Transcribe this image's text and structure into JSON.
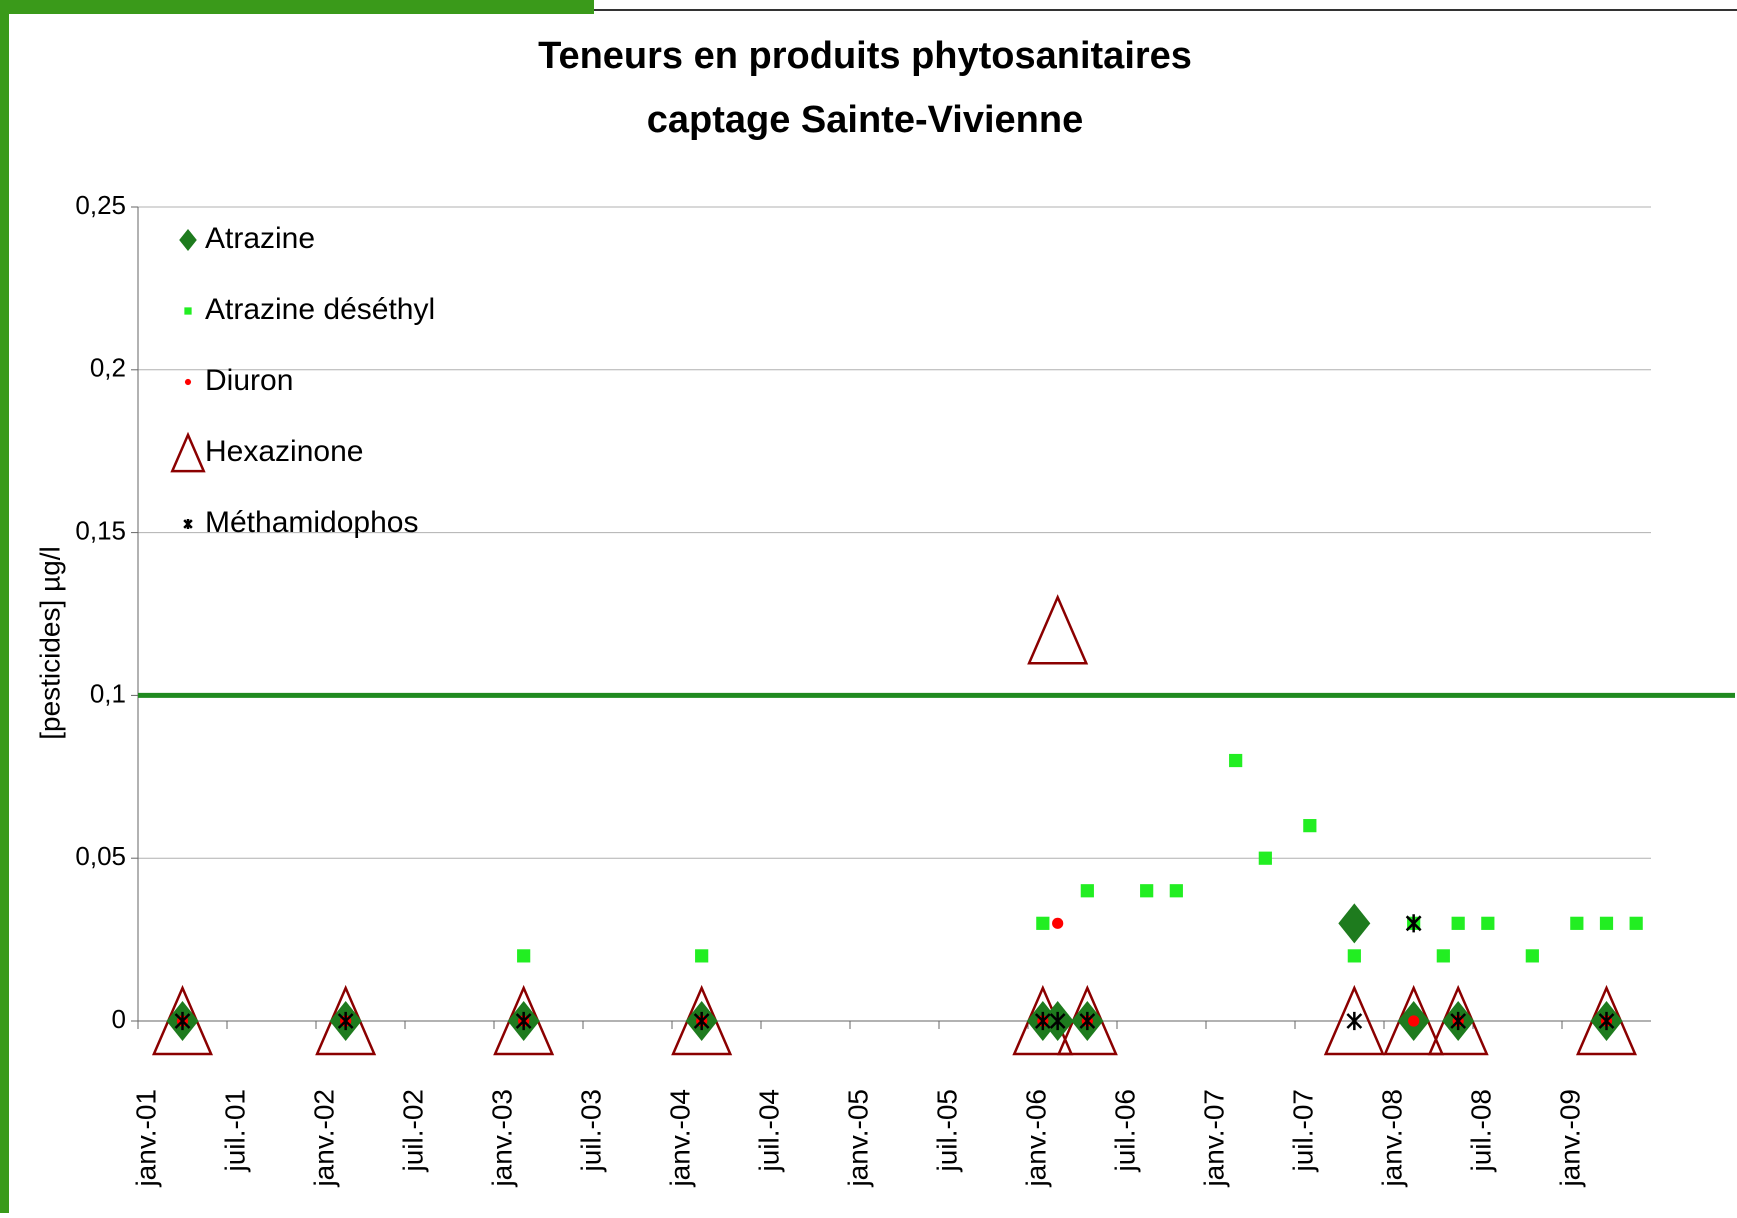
{
  "chart_data": {
    "type": "scatter",
    "title": "Teneurs en produits phytosanitaires",
    "subtitle": "captage Sainte-Vivienne",
    "ylabel": "[pesticides] µg/l",
    "xlim": [
      "2001-01",
      "2009-07"
    ],
    "xticks": [
      {
        "value": "2001-01",
        "label": "janv.-01"
      },
      {
        "value": "2001-07",
        "label": "juil.-01"
      },
      {
        "value": "2002-01",
        "label": "janv.-02"
      },
      {
        "value": "2002-07",
        "label": "juil.-02"
      },
      {
        "value": "2003-01",
        "label": "janv.-03"
      },
      {
        "value": "2003-07",
        "label": "juil.-03"
      },
      {
        "value": "2004-01",
        "label": "janv.-04"
      },
      {
        "value": "2004-07",
        "label": "juil.-04"
      },
      {
        "value": "2005-01",
        "label": "janv.-05"
      },
      {
        "value": "2005-07",
        "label": "juil.-05"
      },
      {
        "value": "2006-01",
        "label": "janv.-06"
      },
      {
        "value": "2006-07",
        "label": "juil.-06"
      },
      {
        "value": "2007-01",
        "label": "janv.-07"
      },
      {
        "value": "2007-07",
        "label": "juil.-07"
      },
      {
        "value": "2008-01",
        "label": "janv.-08"
      },
      {
        "value": "2008-07",
        "label": "juil.-08"
      },
      {
        "value": "2009-01",
        "label": "janv.-09"
      }
    ],
    "ylim": [
      0,
      0.25
    ],
    "yticks": [
      0,
      {
        "value": 0.05,
        "label": "0,05"
      },
      {
        "value": 0.1,
        "label": "0,1"
      },
      {
        "value": 0.15,
        "label": "0,15"
      },
      {
        "value": 0.2,
        "label": "0,2"
      },
      {
        "value": 0.25,
        "label": "0,25"
      }
    ],
    "grid": true,
    "legend": "top-left",
    "threshold": {
      "value": 0.1,
      "color": "#1f8a1f"
    },
    "series": [
      {
        "name": "Atrazine",
        "color": "#1e7b1e",
        "marker": "diamond",
        "x": [
          "2001-04",
          "2002-03",
          "2003-03",
          "2004-03",
          "2006-02",
          "2006-03",
          "2006-05",
          "2007-11",
          "2008-03",
          "2008-06",
          "2009-04"
        ],
        "values": [
          0,
          0,
          0,
          0,
          0,
          0,
          0,
          0.03,
          0,
          0,
          0
        ]
      },
      {
        "name": "Atrazine déséthyl",
        "color": "#22ee22",
        "marker": "square",
        "x": [
          "2003-03",
          "2004-03",
          "2006-02",
          "2006-05",
          "2006-09",
          "2006-11",
          "2007-03",
          "2007-05",
          "2007-08",
          "2007-11",
          "2008-03",
          "2008-05",
          "2008-06",
          "2008-08",
          "2008-11",
          "2009-02",
          "2009-04",
          "2009-06"
        ],
        "values": [
          0.02,
          0.02,
          0.03,
          0.04,
          0.04,
          0.04,
          0.08,
          0.05,
          0.06,
          0.02,
          0.03,
          0.02,
          0.03,
          0.03,
          0.02,
          0.03,
          0.03,
          0.03
        ]
      },
      {
        "name": "Diuron",
        "color": "#ff0000",
        "marker": "circle",
        "x": [
          "2001-04",
          "2002-03",
          "2003-03",
          "2004-03",
          "2006-02",
          "2006-03",
          "2006-05",
          "2008-03",
          "2008-06",
          "2009-04"
        ],
        "values": [
          0,
          0,
          0,
          0,
          0,
          0.03,
          0,
          0,
          0,
          0
        ]
      },
      {
        "name": "Hexazinone",
        "color": "#8b0000",
        "marker": "triangle",
        "x": [
          "2001-04",
          "2002-03",
          "2003-03",
          "2004-03",
          "2006-02",
          "2006-03",
          "2006-05",
          "2007-11",
          "2008-03",
          "2008-06",
          "2009-04"
        ],
        "values": [
          0,
          0,
          0,
          0,
          0,
          0.12,
          0,
          0,
          0,
          0,
          0
        ]
      },
      {
        "name": "Méthamidophos",
        "color": "#000000",
        "marker": "star",
        "x": [
          "2001-04",
          "2002-03",
          "2003-03",
          "2004-03",
          "2006-02",
          "2006-03",
          "2006-05",
          "2007-11",
          "2008-03",
          "2008-06",
          "2009-04"
        ],
        "values": [
          0,
          0,
          0,
          0,
          0,
          0,
          0,
          0,
          0.03,
          0,
          0
        ]
      }
    ]
  }
}
